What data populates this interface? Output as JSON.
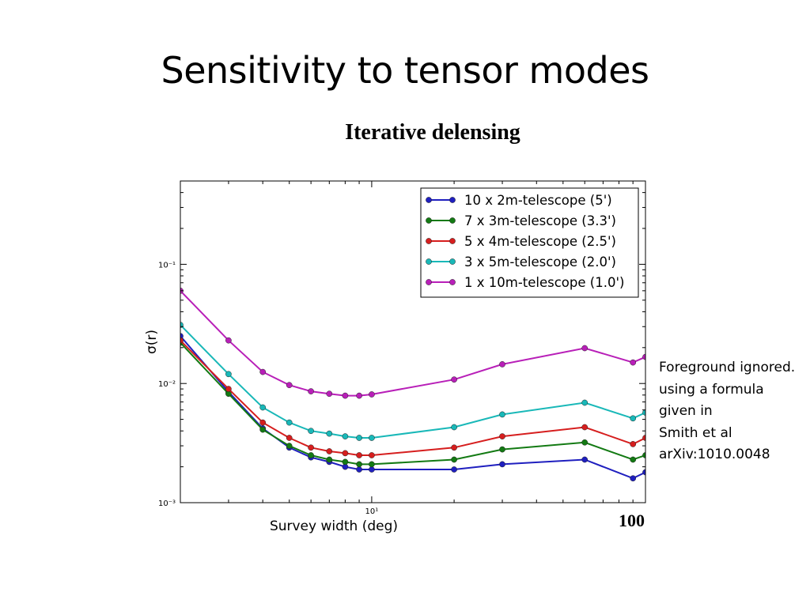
{
  "slide": {
    "title": "Sensitivity to tensor modes",
    "subtitle": "Iterative delensing",
    "note_lines": [
      "Foreground ignored.",
      "using a formula",
      "given in",
      "Smith et al",
      "arXiv:1010.0048"
    ],
    "overlay_tick": "100"
  },
  "chart_data": {
    "type": "line",
    "xlabel": "Survey width (deg)",
    "ylabel": "σ(r)",
    "xscale": "log",
    "yscale": "log",
    "xlim": [
      2,
      100
    ],
    "ylim": [
      0.001,
      0.5
    ],
    "x_ticks": [
      {
        "value": 10,
        "label": "10¹"
      }
    ],
    "y_ticks": [
      {
        "value": 0.001,
        "label": "10⁻³"
      },
      {
        "value": 0.01,
        "label": "10⁻²"
      },
      {
        "value": 0.1,
        "label": "10⁻¹"
      }
    ],
    "grid": false,
    "legend": "top-right",
    "x": [
      2,
      3,
      4,
      5,
      6,
      7,
      8,
      9,
      10,
      20,
      30,
      60,
      90,
      100
    ],
    "series": [
      {
        "name": "10 x 2m-telescope (5')",
        "color": "#1f1fbf",
        "values": [
          0.025,
          0.0085,
          0.0042,
          0.0029,
          0.0024,
          0.0022,
          0.002,
          0.0019,
          0.0019,
          0.0019,
          0.0021,
          0.0023,
          0.0016,
          0.0018
        ]
      },
      {
        "name": "7 x 3m-telescope (3.3')",
        "color": "#137a13",
        "values": [
          0.022,
          0.0082,
          0.0041,
          0.003,
          0.0025,
          0.0023,
          0.0022,
          0.0021,
          0.0021,
          0.0023,
          0.0028,
          0.0032,
          0.0023,
          0.0025
        ]
      },
      {
        "name": "5 x 4m-telescope (2.5')",
        "color": "#d61e1e",
        "values": [
          0.023,
          0.009,
          0.0047,
          0.0035,
          0.0029,
          0.0027,
          0.0026,
          0.0025,
          0.0025,
          0.0029,
          0.0036,
          0.0043,
          0.0031,
          0.0035
        ]
      },
      {
        "name": "3 x 5m-telescope (2.0')",
        "color": "#19b8b8",
        "values": [
          0.031,
          0.012,
          0.0063,
          0.0047,
          0.004,
          0.0038,
          0.0036,
          0.0035,
          0.0035,
          0.0043,
          0.0055,
          0.0069,
          0.0051,
          0.0057
        ]
      },
      {
        "name": "1 x 10m-telescope (1.0')",
        "color": "#b81fb8",
        "values": [
          0.06,
          0.023,
          0.0125,
          0.0097,
          0.0086,
          0.0082,
          0.0079,
          0.0079,
          0.0081,
          0.0108,
          0.0145,
          0.0198,
          0.015,
          0.0167
        ]
      }
    ]
  }
}
